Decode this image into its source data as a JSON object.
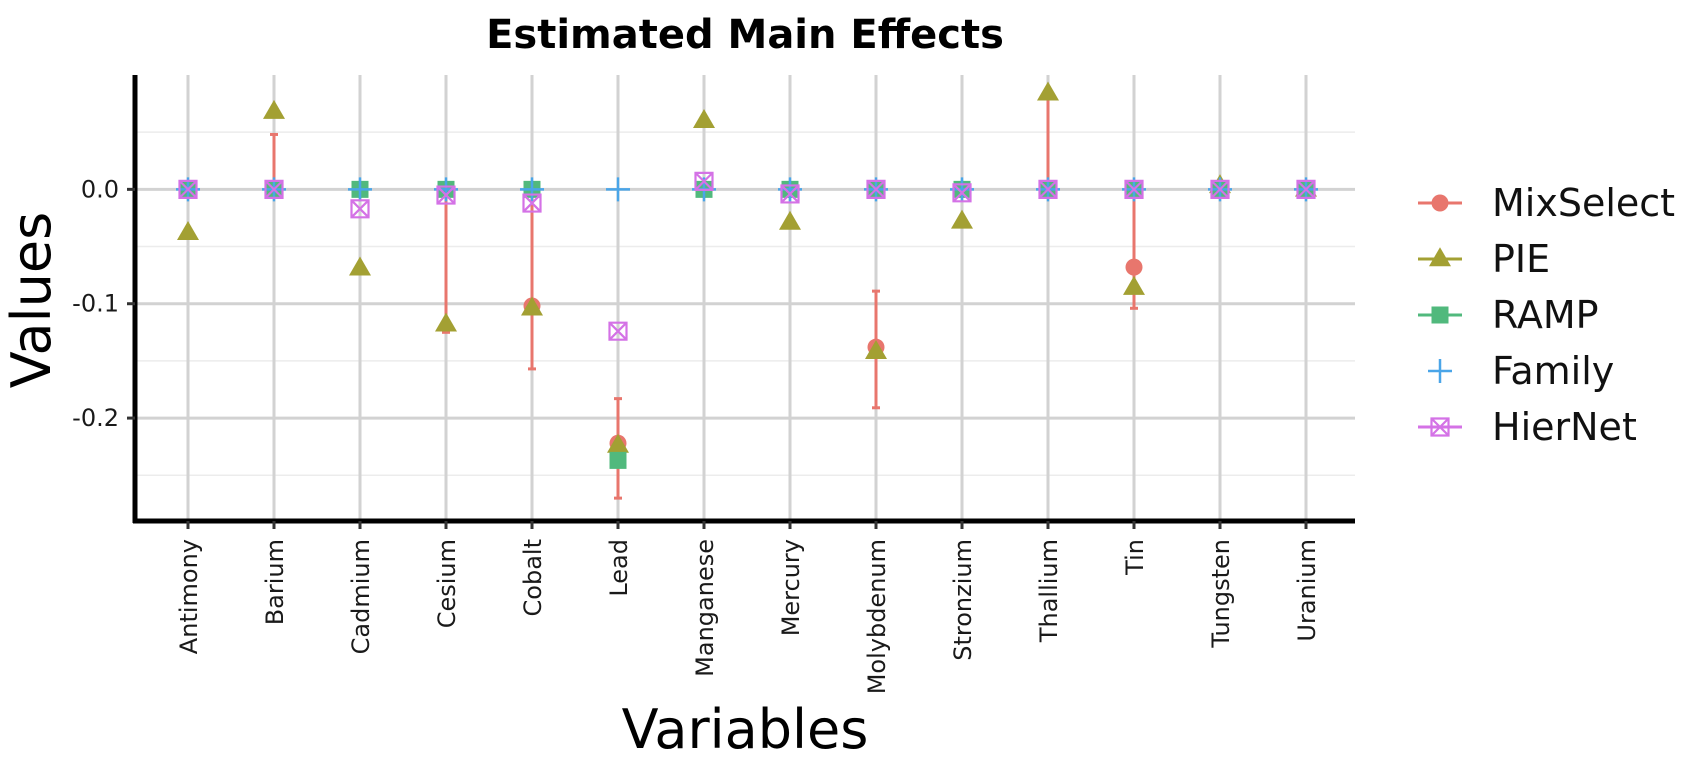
{
  "chart_data": {
    "type": "scatter",
    "title": "Estimated Main Effects",
    "xlabel": "Variables",
    "ylabel": "Values",
    "ylim": [
      -0.29,
      0.1
    ],
    "yticks": [
      0.0,
      -0.1,
      -0.2
    ],
    "ytick_labels": [
      "0.0",
      "-0.1",
      "-0.2"
    ],
    "grid": true,
    "legend_position": "right",
    "categories": [
      "Antimony",
      "Barium",
      "Cadmium",
      "Cesium",
      "Cobalt",
      "Lead",
      "Manganese",
      "Mercury",
      "Molybdenum",
      "Stronzium",
      "Thallium",
      "Tin",
      "Tungsten",
      "Uranium"
    ],
    "series": [
      {
        "name": "MixSelect",
        "color": "#E8766D",
        "marker": "circle",
        "values": [
          0.0,
          0.0,
          0.0,
          0.0,
          -0.102,
          -0.222,
          0.0,
          0.0,
          -0.138,
          0.0,
          0.0,
          -0.068,
          0.0,
          0.0
        ],
        "lower": [
          0.0,
          0.0,
          0.0,
          -0.125,
          -0.157,
          -0.27,
          0.0,
          0.0,
          -0.191,
          0.0,
          0.0,
          -0.104,
          0.0,
          0.0
        ],
        "upper": [
          0.0,
          0.048,
          0.0,
          0.0,
          0.0,
          -0.183,
          0.0,
          0.0,
          -0.089,
          0.0,
          0.082,
          0.0,
          0.0,
          0.0
        ]
      },
      {
        "name": "PIE",
        "color": "#A3A033",
        "marker": "triangle",
        "values": [
          -0.038,
          0.068,
          -0.069,
          -0.118,
          -0.104,
          -0.224,
          0.06,
          -0.029,
          -0.142,
          -0.028,
          0.084,
          -0.086,
          0.003,
          0.0
        ]
      },
      {
        "name": "RAMP",
        "color": "#51B97D",
        "marker": "square",
        "values": [
          0.0,
          0.0,
          0.0,
          0.0,
          0.0,
          -0.237,
          0.0,
          0.0,
          0.0,
          0.0,
          0.0,
          0.0,
          0.0,
          0.0
        ]
      },
      {
        "name": "Family",
        "color": "#4AA5E8",
        "marker": "plus",
        "values": [
          0.0,
          0.0,
          0.0,
          0.0,
          0.0,
          0.0,
          0.0,
          0.0,
          0.0,
          0.0,
          0.0,
          0.0,
          0.0,
          0.0
        ]
      },
      {
        "name": "HierNet",
        "color": "#D472E6",
        "marker": "boxcross",
        "values": [
          0.0,
          0.0,
          -0.017,
          -0.005,
          -0.012,
          -0.124,
          0.007,
          -0.004,
          0.0,
          -0.003,
          0.0,
          0.0,
          0.0,
          0.0
        ]
      }
    ]
  }
}
